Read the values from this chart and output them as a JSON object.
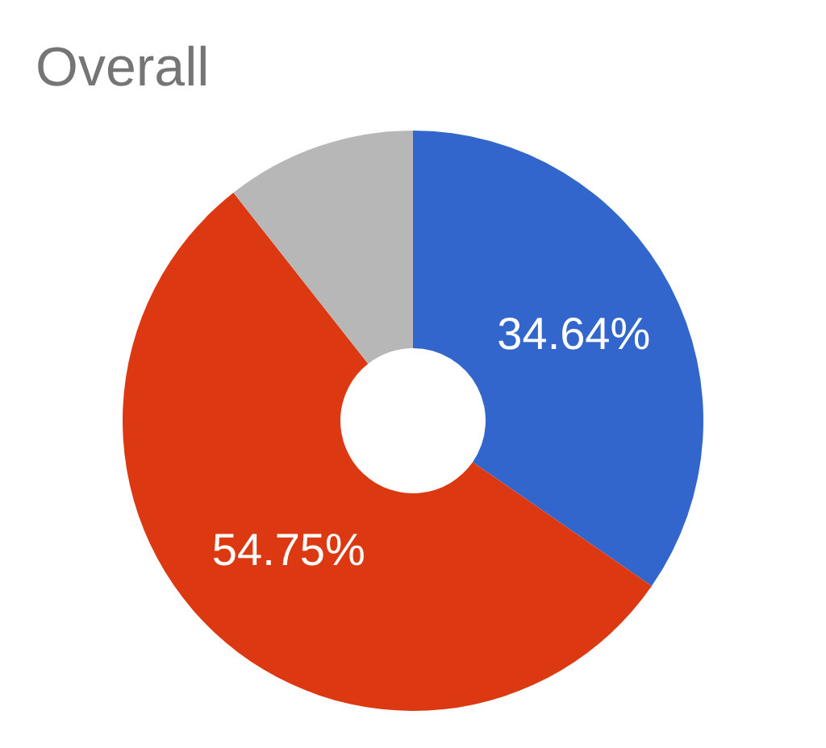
{
  "chart_data": {
    "type": "donut",
    "title": "Overall",
    "categories": [
      null,
      null,
      null
    ],
    "values": [
      34.64,
      54.75,
      10.61
    ],
    "colors": [
      "#3366cc",
      "#dc3912",
      "#b7b7b7"
    ],
    "value_labels": [
      "34.64%",
      "54.75%",
      null
    ],
    "legend": false
  }
}
